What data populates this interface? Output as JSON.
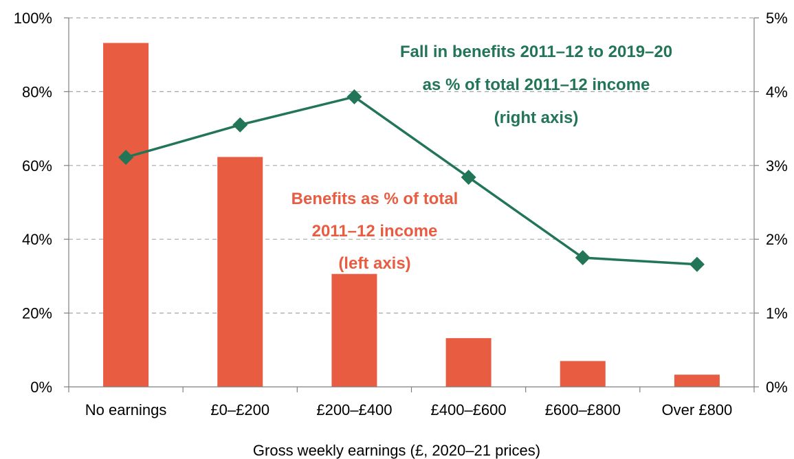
{
  "chart_data": {
    "type": "bar",
    "categories": [
      "No earnings",
      "£0–£200",
      "£200–£400",
      "£400–£600",
      "£600–£800",
      "Over £800"
    ],
    "xlabel": "Gross weekly earnings (£, 2020–21 prices)",
    "grid": true,
    "left_axis": {
      "range": [
        0,
        100
      ],
      "ticks": [
        "0%",
        "20%",
        "40%",
        "60%",
        "80%",
        "100%"
      ]
    },
    "right_axis": {
      "range": [
        0,
        5
      ],
      "ticks": [
        "0%",
        "1%",
        "2%",
        "3%",
        "4%",
        "5%"
      ]
    },
    "series": [
      {
        "type": "bar",
        "axis": "left",
        "color": "#e85c41",
        "values": [
          93.2,
          62.3,
          30.6,
          13.2,
          7.0,
          3.3
        ]
      },
      {
        "type": "line",
        "axis": "right",
        "color": "#227556",
        "marker": "diamond",
        "values": [
          3.11,
          3.55,
          3.93,
          2.84,
          1.75,
          1.66
        ]
      }
    ],
    "annotations": [
      {
        "color": "#227556",
        "lines": [
          "Fall in benefits 2011–12 to 2019–20",
          "as % of total 2011–12 income",
          "(right axis)"
        ]
      },
      {
        "color": "#e85c41",
        "lines": [
          "Benefits as % of total",
          "2011–12 income",
          "(left axis)"
        ]
      }
    ]
  }
}
